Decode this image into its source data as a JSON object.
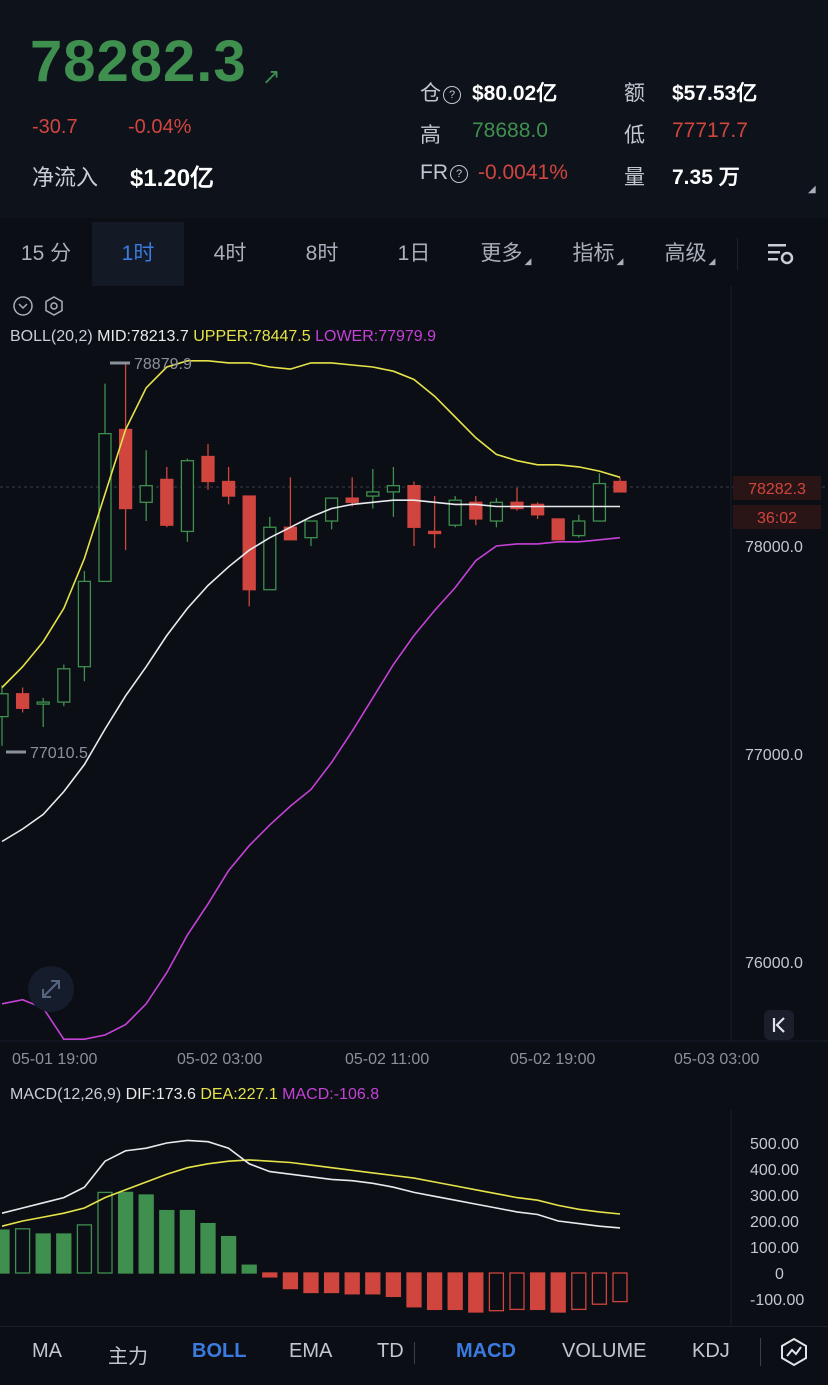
{
  "header": {
    "price": "78282.3",
    "change": "-30.7",
    "change_pct": "-0.04%",
    "net_inflow_label": "净流入",
    "net_inflow_value": "$1.20亿",
    "open_interest_label": "仓",
    "open_interest_value": "$80.02亿",
    "turnover_label": "额",
    "turnover_value": "$57.53亿",
    "high_label": "高",
    "high_value": "78688.0",
    "low_label": "低",
    "low_value": "77717.7",
    "fr_label": "FR",
    "fr_value": "-0.0041%",
    "volume_label": "量",
    "volume_value": "7.35 万",
    "colors": {
      "up": "#3f8f4f",
      "down": "#d0453e"
    }
  },
  "timeframes": [
    "15 分",
    "1时",
    "4时",
    "8时",
    "1日",
    "更多",
    "指标",
    "高级"
  ],
  "active_timeframe": "1时",
  "boll_legend": {
    "name": "BOLL(20,2)",
    "mid": "MID:78213.7",
    "upper": "UPPER:78447.5",
    "lower": "LOWER:77979.9"
  },
  "macd_legend": {
    "name": "MACD(12,26,9)",
    "dif": "DIF:173.6",
    "dea": "DEA:227.1",
    "macd": "MACD:-106.8"
  },
  "current_price_tag": "78282.3",
  "countdown_tag": "36:02",
  "indicator_tabs": [
    "MA",
    "主力",
    "BOLL",
    "EMA",
    "TD",
    "MACD",
    "VOLUME",
    "KDJ"
  ],
  "active_indicators": [
    "BOLL",
    "MACD"
  ],
  "icons": [
    "chevron-down-circle-icon",
    "settings-hex-icon",
    "chart-settings-icon",
    "expand-icon",
    "jump-to-latest-icon",
    "draw-tool-icon",
    "info-circle-icon"
  ],
  "chart_data": [
    {
      "type": "candlestick",
      "title": "",
      "x_ticks": [
        "05-01 19:00",
        "05-02 03:00",
        "05-02 11:00",
        "05-02 19:00",
        "05-03 03:00"
      ],
      "y_ticks": [
        "78000.0",
        "77000.0",
        "76000.0"
      ],
      "ylim": [
        75700,
        78900
      ],
      "max_marker": "78879.9",
      "min_marker": "77010.5",
      "candles": [
        {
          "o": 77180,
          "h": 77330,
          "l": 77040,
          "c": 77290
        },
        {
          "o": 77290,
          "h": 77320,
          "l": 77200,
          "c": 77220
        },
        {
          "o": 77250,
          "h": 77270,
          "l": 77130,
          "c": 77250
        },
        {
          "o": 77250,
          "h": 77430,
          "l": 77230,
          "c": 77410
        },
        {
          "o": 77420,
          "h": 77880,
          "l": 77350,
          "c": 77830
        },
        {
          "o": 77830,
          "h": 78780,
          "l": 77830,
          "c": 78540
        },
        {
          "o": 78560,
          "h": 78880,
          "l": 77980,
          "c": 78180
        },
        {
          "o": 78210,
          "h": 78460,
          "l": 78120,
          "c": 78290
        },
        {
          "o": 78320,
          "h": 78380,
          "l": 78090,
          "c": 78100
        },
        {
          "o": 78070,
          "h": 78420,
          "l": 78020,
          "c": 78410
        },
        {
          "o": 78430,
          "h": 78490,
          "l": 78270,
          "c": 78310
        },
        {
          "o": 78310,
          "h": 78380,
          "l": 78200,
          "c": 78240
        },
        {
          "o": 78240,
          "h": 78240,
          "l": 77710,
          "c": 77790
        },
        {
          "o": 77790,
          "h": 78140,
          "l": 77790,
          "c": 78090
        },
        {
          "o": 78090,
          "h": 78330,
          "l": 78050,
          "c": 78030
        },
        {
          "o": 78040,
          "h": 78110,
          "l": 78000,
          "c": 78120
        },
        {
          "o": 78120,
          "h": 78230,
          "l": 78080,
          "c": 78230
        },
        {
          "o": 78230,
          "h": 78330,
          "l": 78190,
          "c": 78210
        },
        {
          "o": 78240,
          "h": 78370,
          "l": 78180,
          "c": 78260
        },
        {
          "o": 78260,
          "h": 78380,
          "l": 78140,
          "c": 78290
        },
        {
          "o": 78290,
          "h": 78310,
          "l": 78000,
          "c": 78090
        },
        {
          "o": 78070,
          "h": 78240,
          "l": 77990,
          "c": 78060
        },
        {
          "o": 78100,
          "h": 78240,
          "l": 78090,
          "c": 78220
        },
        {
          "o": 78210,
          "h": 78240,
          "l": 78100,
          "c": 78130
        },
        {
          "o": 78120,
          "h": 78230,
          "l": 78090,
          "c": 78210
        },
        {
          "o": 78210,
          "h": 78280,
          "l": 78170,
          "c": 78180
        },
        {
          "o": 78200,
          "h": 78210,
          "l": 78130,
          "c": 78150
        },
        {
          "o": 78130,
          "h": 78130,
          "l": 78030,
          "c": 78030
        },
        {
          "o": 78050,
          "h": 78150,
          "l": 78040,
          "c": 78120
        },
        {
          "o": 78120,
          "h": 78350,
          "l": 78120,
          "c": 78300
        },
        {
          "o": 78310,
          "h": 78330,
          "l": 78260,
          "c": 78260
        }
      ],
      "boll": {
        "upper": [
          77320,
          77420,
          77540,
          77700,
          77940,
          78250,
          78560,
          78760,
          78860,
          78890,
          78890,
          78880,
          78880,
          78860,
          78850,
          78880,
          78880,
          78870,
          78860,
          78840,
          78800,
          78720,
          78620,
          78520,
          78440,
          78410,
          78390,
          78390,
          78380,
          78360,
          78330
        ],
        "mid": [
          76580,
          76640,
          76710,
          76820,
          76950,
          77120,
          77280,
          77420,
          77570,
          77700,
          77810,
          77900,
          77980,
          78040,
          78090,
          78140,
          78180,
          78200,
          78210,
          78220,
          78220,
          78210,
          78200,
          78200,
          78190,
          78190,
          78190,
          78190,
          78190,
          78190,
          78190
        ],
        "lower": [
          75800,
          75820,
          75780,
          75630,
          75630,
          75650,
          75700,
          75800,
          75950,
          76130,
          76280,
          76440,
          76560,
          76660,
          76750,
          76830,
          76960,
          77110,
          77270,
          77430,
          77570,
          77690,
          77800,
          77930,
          78000,
          78010,
          78010,
          78020,
          78020,
          78030,
          78040
        ]
      }
    },
    {
      "type": "bar",
      "title": "",
      "y_ticks": [
        "500.00",
        "400.00",
        "300.00",
        "200.00",
        "100.00",
        "0",
        "-100.00"
      ],
      "ylim": [
        -150,
        550
      ],
      "histogram": [
        165,
        170,
        150,
        150,
        185,
        310,
        310,
        300,
        240,
        240,
        190,
        140,
        30,
        -15,
        -60,
        -75,
        -75,
        -80,
        -80,
        -90,
        -130,
        -140,
        -140,
        -150,
        -145,
        -140,
        -140,
        -150,
        -140,
        -120,
        -110
      ],
      "dif": [
        230,
        250,
        270,
        290,
        330,
        430,
        470,
        480,
        500,
        510,
        505,
        480,
        420,
        390,
        380,
        370,
        360,
        355,
        345,
        330,
        310,
        295,
        280,
        265,
        250,
        235,
        225,
        200,
        190,
        180,
        173.6
      ],
      "dea": [
        180,
        200,
        215,
        230,
        250,
        290,
        320,
        350,
        380,
        405,
        420,
        430,
        435,
        430,
        425,
        415,
        405,
        395,
        385,
        375,
        365,
        350,
        335,
        320,
        305,
        290,
        280,
        260,
        245,
        235,
        227.1
      ]
    }
  ]
}
